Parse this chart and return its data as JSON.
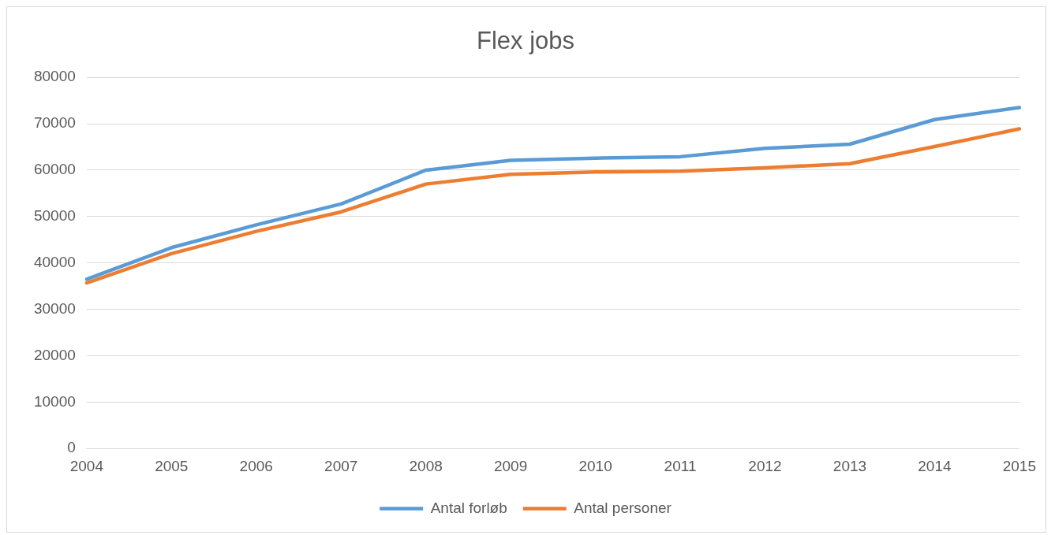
{
  "chart_data": {
    "type": "line",
    "title": "Flex jobs",
    "categories": [
      "2004",
      "2005",
      "2006",
      "2007",
      "2008",
      "2009",
      "2010",
      "2011",
      "2012",
      "2013",
      "2014",
      "2015"
    ],
    "series": [
      {
        "name": "Antal forløb",
        "color": "#5b9bd5",
        "values": [
          36500,
          43300,
          48200,
          52700,
          60000,
          62100,
          62600,
          62900,
          64700,
          65600,
          70900,
          73500
        ]
      },
      {
        "name": "Antal personer",
        "color": "#ed7d31",
        "values": [
          35700,
          42000,
          46800,
          51000,
          57000,
          59100,
          59600,
          59800,
          60500,
          61400,
          65100,
          68900
        ]
      }
    ],
    "ylim": [
      0,
      80000
    ],
    "yticks": [
      0,
      10000,
      20000,
      30000,
      40000,
      50000,
      60000,
      70000,
      80000
    ],
    "grid": "y",
    "legend": "bottom",
    "marker": "none",
    "line_style": "solid"
  }
}
